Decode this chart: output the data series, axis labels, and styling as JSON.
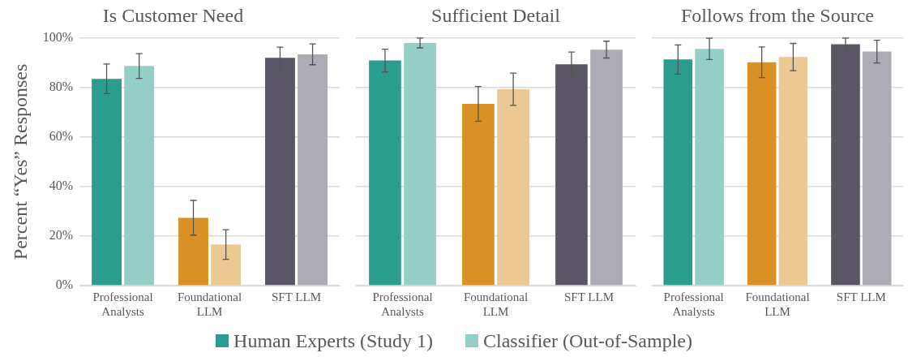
{
  "chart_data": [
    {
      "type": "bar",
      "title": "Is Customer Need",
      "ylabel": "Percent “Yes” Responses",
      "categories": [
        "Professional Analysts",
        "Foundational LLM",
        "SFT LLM"
      ],
      "ylim": [
        0,
        100
      ],
      "yticks": [
        {
          "value": 0,
          "label": "0%"
        },
        {
          "value": 20,
          "label": "20%"
        },
        {
          "value": 40,
          "label": "40%"
        },
        {
          "value": 60,
          "label": "60%"
        },
        {
          "value": 80,
          "label": "80%"
        },
        {
          "value": 100,
          "label": "100%"
        }
      ],
      "grid": "y",
      "legend": false,
      "series": [
        {
          "colors": [
            "#2a9d8f",
            "#d99125",
            "#5a5666"
          ],
          "values": [
            83.5,
            27.4,
            92
          ],
          "errors": [
            6,
            7,
            4.3
          ]
        },
        {
          "colors": [
            "#95cec7",
            "#ecc892",
            "#adabb3"
          ],
          "values": [
            88.7,
            16.6,
            93.4
          ],
          "errors": [
            5,
            6,
            4.2
          ]
        }
      ]
    },
    {
      "type": "bar",
      "title": "Sufficient Detail",
      "categories": [
        "Professional Analysts",
        "Foundational LLM",
        "SFT LLM"
      ],
      "ylim": [
        0,
        100
      ],
      "yticks": [
        {
          "value": 0,
          "label": null
        },
        {
          "value": 20,
          "label": null
        },
        {
          "value": 40,
          "label": null
        },
        {
          "value": 60,
          "label": null
        },
        {
          "value": 80,
          "label": null
        },
        {
          "value": 100,
          "label": null
        }
      ],
      "grid": "y",
      "tick_labels": "x",
      "legend": "bottom",
      "series": [
        {
          "name": "Human Experts (Study 1)",
          "colors": [
            "#2a9d8f",
            "#d99125",
            "#5a5666"
          ],
          "values": [
            90.9,
            73.4,
            89.4
          ],
          "errors": [
            4.6,
            7,
            4.9
          ]
        },
        {
          "name": "Classifier (Out-of-Sample)",
          "colors": [
            "#95cec7",
            "#ecc892",
            "#adabb3"
          ],
          "values": [
            98,
            79.3,
            95.3
          ],
          "errors": [
            2,
            6.5,
            3.4
          ]
        }
      ]
    },
    {
      "type": "bar",
      "title": "Follows from the Source",
      "categories": [
        "Professional Analysts",
        "Foundational LLM",
        "SFT LLM"
      ],
      "ylim": [
        0,
        100
      ],
      "yticks": [
        {
          "value": 0,
          "label": null
        },
        {
          "value": 20,
          "label": null
        },
        {
          "value": 40,
          "label": null
        },
        {
          "value": 60,
          "label": null
        },
        {
          "value": 80,
          "label": null
        },
        {
          "value": 100,
          "label": null
        }
      ],
      "grid": "y",
      "tick_labels": "x",
      "legend": false,
      "series": [
        {
          "colors": [
            "#2a9d8f",
            "#d99125",
            "#5a5666"
          ],
          "values": [
            91.3,
            90.2,
            97.5
          ],
          "errors": [
            5.9,
            6.2,
            2.5
          ]
        },
        {
          "colors": [
            "#95cec7",
            "#ecc892",
            "#adabb3"
          ],
          "values": [
            95.6,
            92.3,
            94.5
          ],
          "errors": [
            4.3,
            5.5,
            4.6
          ]
        }
      ]
    }
  ]
}
